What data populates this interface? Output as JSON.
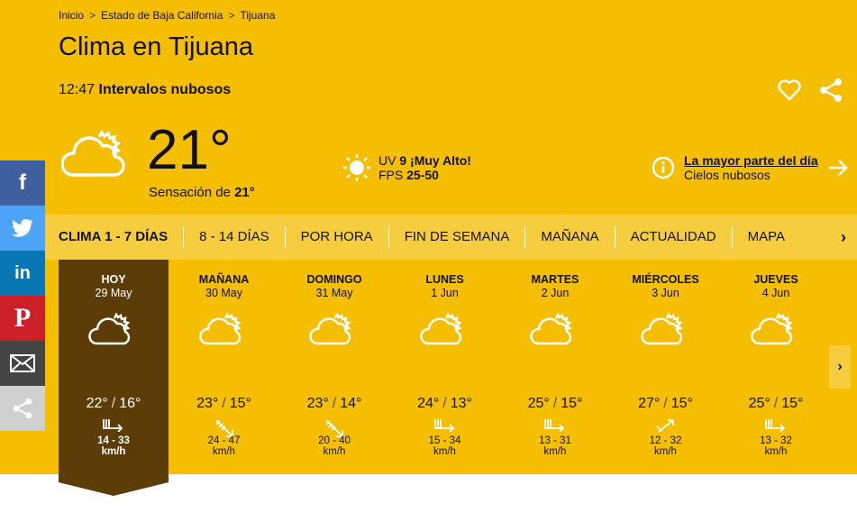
{
  "breadcrumb": [
    "Inicio",
    "Estado de Baja California",
    "Tijuana"
  ],
  "title": "Clima en Tijuana",
  "current": {
    "time": "12:47",
    "condition": "Intervalos nubosos",
    "temp": "21°",
    "feels_label": "Sensación de",
    "feels_value": "21°",
    "icon": "partly-cloudy-icon"
  },
  "uv": {
    "label": "UV",
    "value": "9",
    "level": "¡Muy Alto!",
    "fps_label": "FPS",
    "fps_value": "25-50"
  },
  "most_day": {
    "link": "La mayor parte del día",
    "text": "Cielos nubosos"
  },
  "tabs": [
    "CLIMA 1 - 7 DÍAS",
    "8 - 14 DÍAS",
    "POR HORA",
    "FIN DE SEMANA",
    "MAÑANA",
    "ACTUALIDAD",
    "MAPA"
  ],
  "days": [
    {
      "name": "HOY",
      "date": "29 May",
      "max": "22°",
      "min": "16°",
      "wind": "14 - 33",
      "unit": "km/h",
      "dir": "east"
    },
    {
      "name": "MAÑANA",
      "date": "30 May",
      "max": "23°",
      "min": "15°",
      "wind": "24 - 47",
      "unit": "km/h",
      "dir": "southeast"
    },
    {
      "name": "DOMINGO",
      "date": "31 May",
      "max": "23°",
      "min": "14°",
      "wind": "20 - 40",
      "unit": "km/h",
      "dir": "southeast"
    },
    {
      "name": "LUNES",
      "date": "1 Jun",
      "max": "24°",
      "min": "13°",
      "wind": "15 - 34",
      "unit": "km/h",
      "dir": "east"
    },
    {
      "name": "MARTES",
      "date": "2 Jun",
      "max": "25°",
      "min": "15°",
      "wind": "13 - 31",
      "unit": "km/h",
      "dir": "east"
    },
    {
      "name": "MIÉRCOLES",
      "date": "3 Jun",
      "max": "27°",
      "min": "15°",
      "wind": "12 - 32",
      "unit": "km/h",
      "dir": "northeast"
    },
    {
      "name": "JUEVES",
      "date": "4 Jun",
      "max": "25°",
      "min": "15°",
      "wind": "13 - 32",
      "unit": "km/h",
      "dir": "east"
    }
  ],
  "social": [
    {
      "name": "facebook",
      "color": "#3B5998"
    },
    {
      "name": "twitter",
      "color": "#4DA7F5"
    },
    {
      "name": "linkedin",
      "color": "#0077B5"
    },
    {
      "name": "pinterest",
      "color": "#CB2027"
    },
    {
      "name": "email",
      "color": "#444444"
    },
    {
      "name": "share",
      "color": "#D0D0D0"
    }
  ],
  "colors": {
    "background": "#F5BE00",
    "today": "#5C3D08",
    "tabs": "#F6CD3F"
  }
}
